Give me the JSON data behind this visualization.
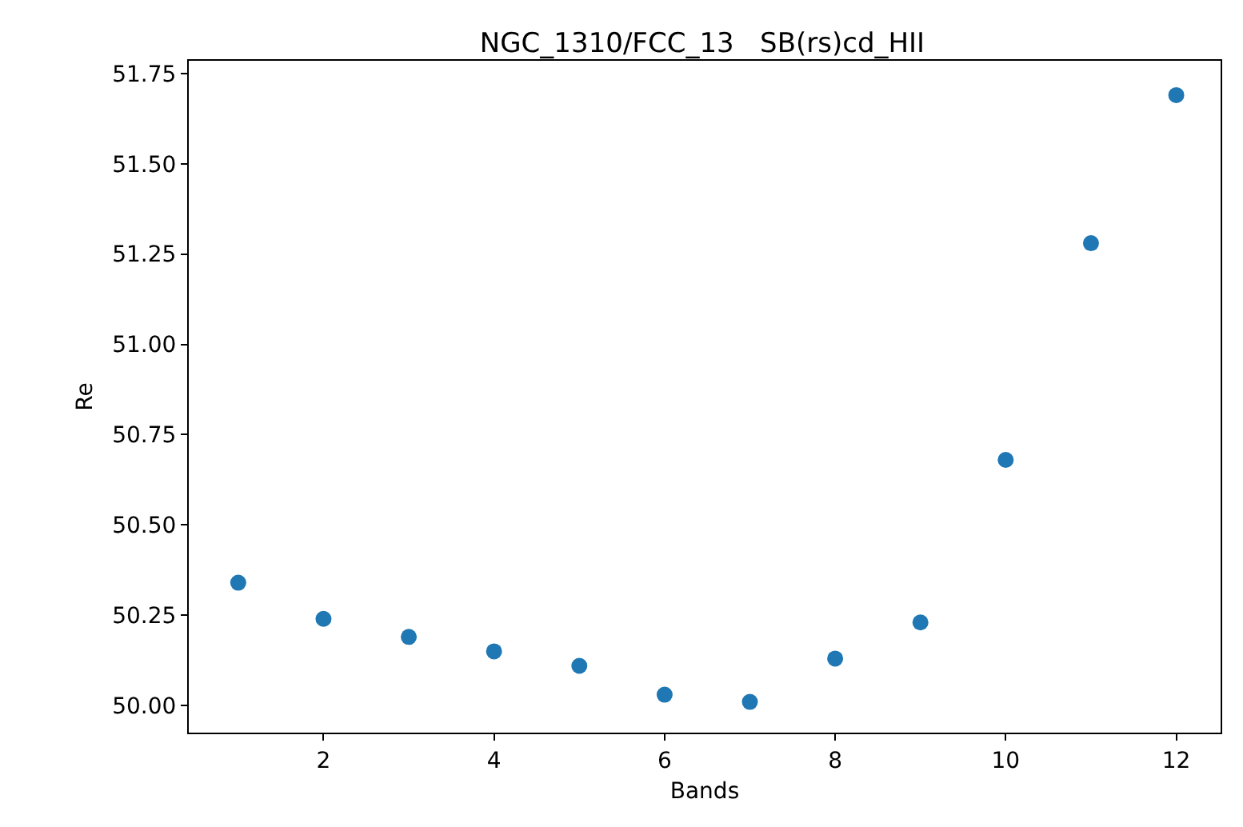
{
  "chart_data": {
    "type": "scatter",
    "title": "NGC_1310/FCC_13   SB(rs)cd_HII",
    "xlabel": "Bands",
    "ylabel": "Re",
    "x": [
      1,
      2,
      3,
      4,
      5,
      6,
      7,
      8,
      9,
      10,
      11,
      12
    ],
    "series": [
      {
        "color": "#1f77b4",
        "values": [
          50.34,
          50.24,
          50.19,
          50.15,
          50.11,
          50.03,
          50.01,
          50.13,
          50.23,
          50.68,
          51.28,
          51.69
        ]
      }
    ],
    "xlim": [
      0.42,
      12.52
    ],
    "xticks": [
      2,
      4,
      6,
      8,
      10,
      12
    ],
    "ylim": [
      49.925,
      51.785
    ],
    "yticks": [
      {
        "value": 50.0,
        "label": "50.00"
      },
      {
        "value": 50.25,
        "label": "50.25"
      },
      {
        "value": 50.5,
        "label": "50.50"
      },
      {
        "value": 50.75,
        "label": "50.75"
      },
      {
        "value": 51.0,
        "label": "51.00"
      },
      {
        "value": 51.25,
        "label": "51.25"
      },
      {
        "value": 51.5,
        "label": "51.50"
      },
      {
        "value": 51.75,
        "label": "51.75"
      }
    ],
    "grid": false,
    "legend": false,
    "marker": "circle"
  }
}
